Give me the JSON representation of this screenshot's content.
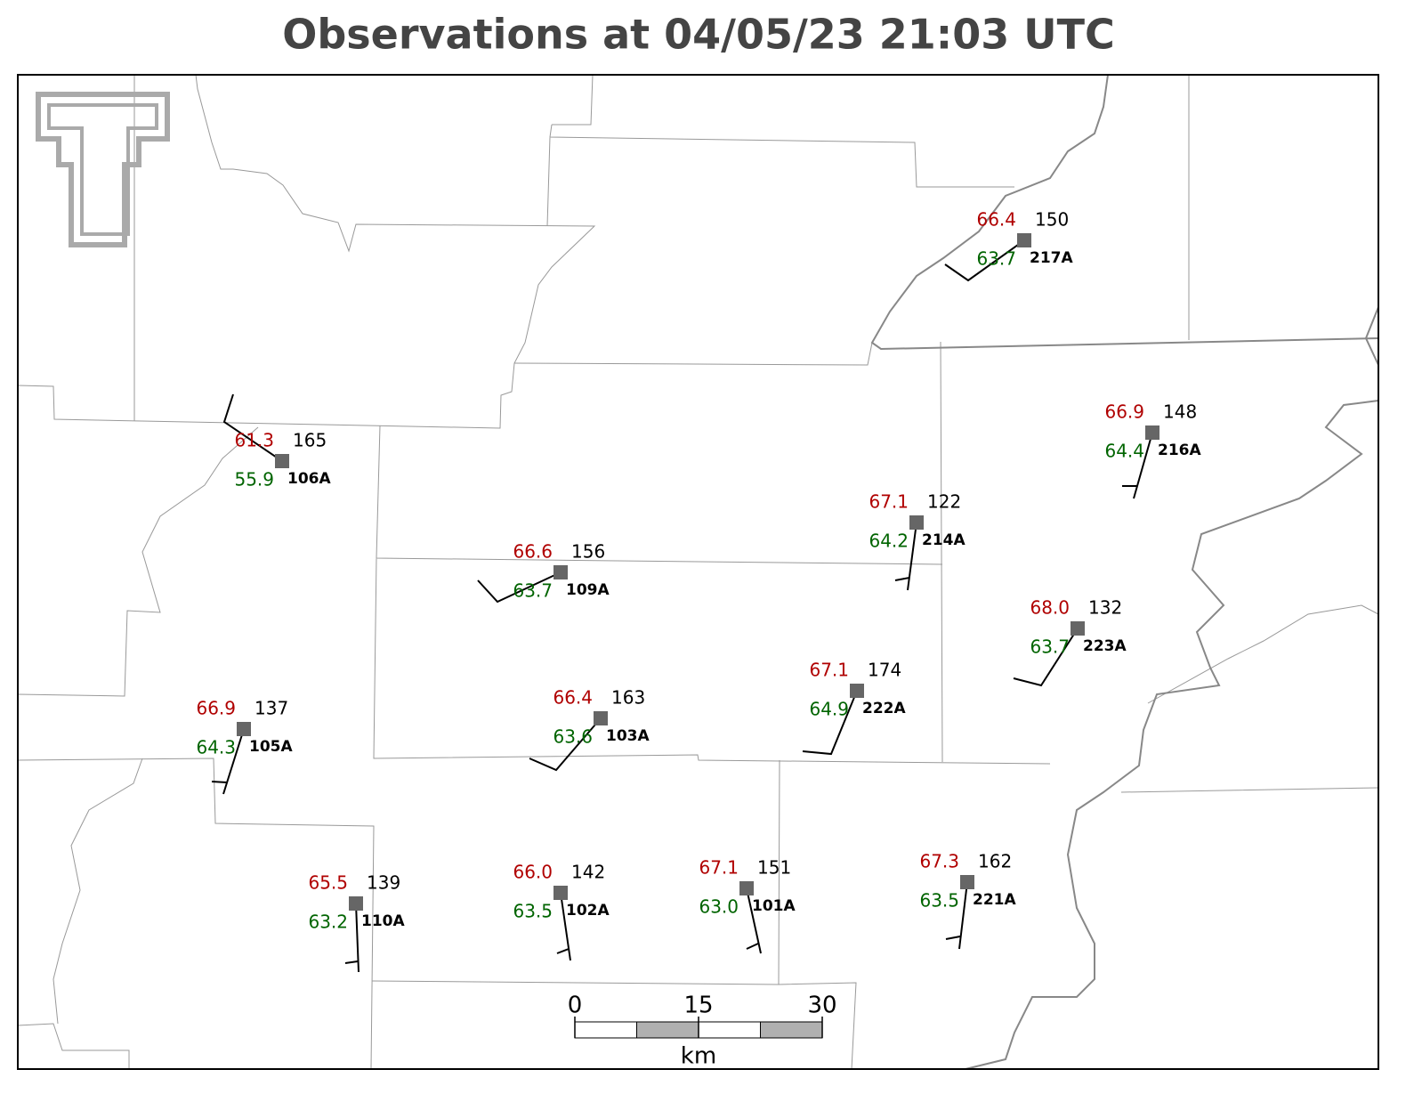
{
  "title": "Observations at 04/05/23 21:03 UTC",
  "stations": [
    {
      "id": "217A",
      "temp": "66.4",
      "dewpoint": "63.7",
      "pressure": "150"
    },
    {
      "id": "216A",
      "temp": "66.9",
      "dewpoint": "64.4",
      "pressure": "148"
    },
    {
      "id": "214A",
      "temp": "67.1",
      "dewpoint": "64.2",
      "pressure": "122"
    },
    {
      "id": "109A",
      "temp": "66.6",
      "dewpoint": "63.7",
      "pressure": "156"
    },
    {
      "id": "106A",
      "temp": "61.3",
      "dewpoint": "55.9",
      "pressure": "165"
    },
    {
      "id": "223A",
      "temp": "68.0",
      "dewpoint": "63.7",
      "pressure": "132"
    },
    {
      "id": "222A",
      "temp": "67.1",
      "dewpoint": "64.9",
      "pressure": "174"
    },
    {
      "id": "103A",
      "temp": "66.4",
      "dewpoint": "63.6",
      "pressure": "163"
    },
    {
      "id": "105A",
      "temp": "66.9",
      "dewpoint": "64.3",
      "pressure": "137"
    },
    {
      "id": "110A",
      "temp": "65.5",
      "dewpoint": "63.2",
      "pressure": "139"
    },
    {
      "id": "102A",
      "temp": "66.0",
      "dewpoint": "63.5",
      "pressure": "142"
    },
    {
      "id": "101A",
      "temp": "67.1",
      "dewpoint": "63.0",
      "pressure": "151"
    },
    {
      "id": "221A",
      "temp": "67.3",
      "dewpoint": "63.5",
      "pressure": "162"
    }
  ],
  "scale_bar": {
    "labels": [
      "0",
      "15",
      "30"
    ],
    "unit": "km"
  }
}
